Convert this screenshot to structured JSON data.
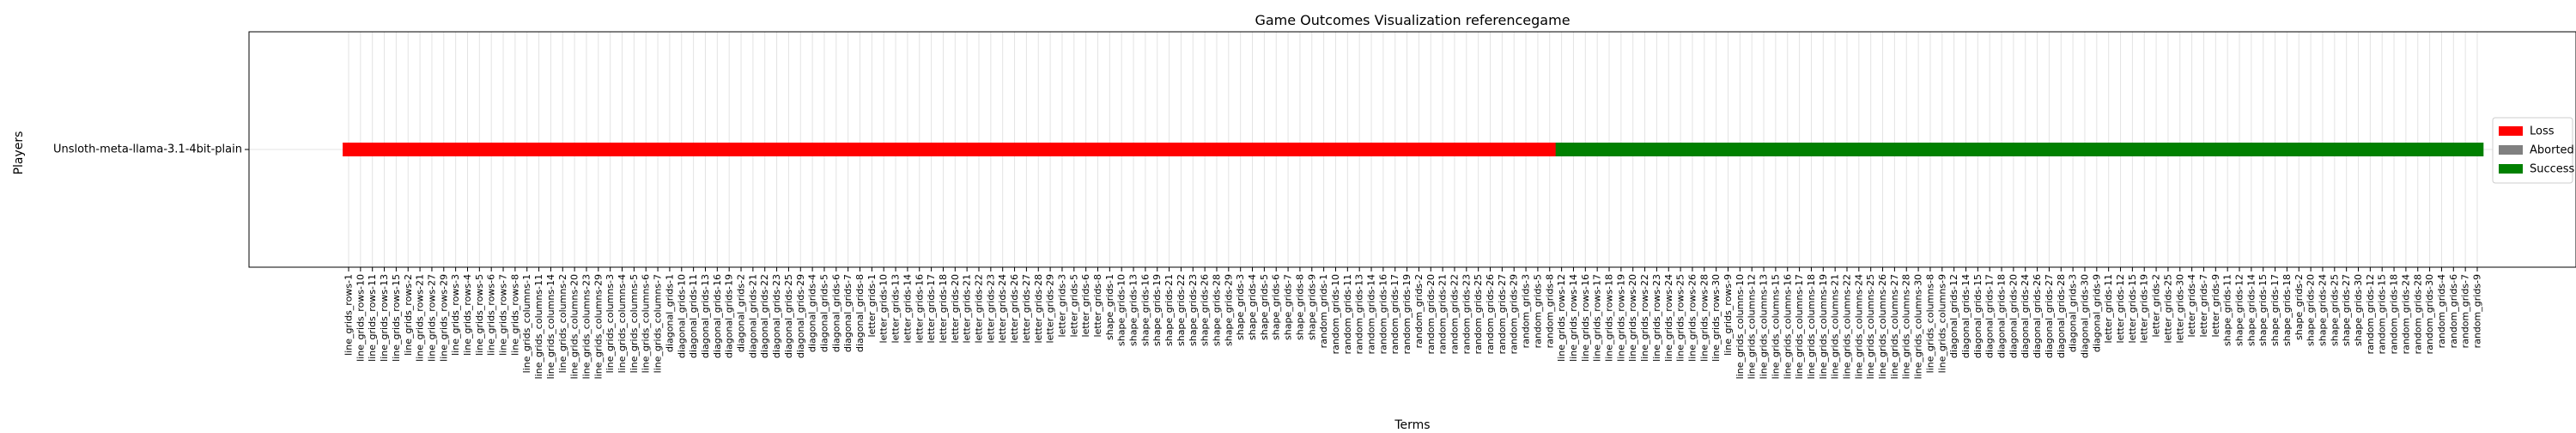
{
  "chart_data": {
    "type": "bar",
    "orientation": "horizontal-timeline",
    "title": "Game Outcomes Visualization referencegame",
    "xlabel": "Terms",
    "ylabel": "Players",
    "players": [
      "Unsloth-meta-llama-3.1-4bit-plain"
    ],
    "grid": true,
    "legend_position": "right",
    "legend": [
      {
        "label": "Loss",
        "color": "#ff0000"
      },
      {
        "label": "Aborted",
        "color": "#808080"
      },
      {
        "label": "Success",
        "color": "#008000"
      }
    ],
    "loss_terms": [
      "line_grids_rows-1",
      "line_grids_rows-10",
      "line_grids_rows-11",
      "line_grids_rows-13",
      "line_grids_rows-15",
      "line_grids_rows-2",
      "line_grids_rows-21",
      "line_grids_rows-27",
      "line_grids_rows-29",
      "line_grids_rows-3",
      "line_grids_rows-4",
      "line_grids_rows-5",
      "line_grids_rows-6",
      "line_grids_rows-7",
      "line_grids_rows-8",
      "line_grids_columns-1",
      "line_grids_columns-11",
      "line_grids_columns-14",
      "line_grids_columns-2",
      "line_grids_columns-20",
      "line_grids_columns-23",
      "line_grids_columns-29",
      "line_grids_columns-3",
      "line_grids_columns-4",
      "line_grids_columns-5",
      "line_grids_columns-6",
      "line_grids_columns-7",
      "diagonal_grids-1",
      "diagonal_grids-10",
      "diagonal_grids-11",
      "diagonal_grids-13",
      "diagonal_grids-16",
      "diagonal_grids-19",
      "diagonal_grids-2",
      "diagonal_grids-21",
      "diagonal_grids-22",
      "diagonal_grids-23",
      "diagonal_grids-25",
      "diagonal_grids-29",
      "diagonal_grids-4",
      "diagonal_grids-5",
      "diagonal_grids-6",
      "diagonal_grids-7",
      "diagonal_grids-8",
      "letter_grids-1",
      "letter_grids-10",
      "letter_grids-13",
      "letter_grids-14",
      "letter_grids-16",
      "letter_grids-17",
      "letter_grids-18",
      "letter_grids-20",
      "letter_grids-21",
      "letter_grids-22",
      "letter_grids-23",
      "letter_grids-24",
      "letter_grids-26",
      "letter_grids-27",
      "letter_grids-28",
      "letter_grids-29",
      "letter_grids-3",
      "letter_grids-5",
      "letter_grids-6",
      "letter_grids-8",
      "shape_grids-1",
      "shape_grids-10",
      "shape_grids-13",
      "shape_grids-16",
      "shape_grids-19",
      "shape_grids-21",
      "shape_grids-22",
      "shape_grids-23",
      "shape_grids-26",
      "shape_grids-28",
      "shape_grids-29",
      "shape_grids-3",
      "shape_grids-4",
      "shape_grids-5",
      "shape_grids-6",
      "shape_grids-7",
      "shape_grids-8",
      "shape_grids-9",
      "random_grids-1",
      "random_grids-10",
      "random_grids-11",
      "random_grids-13",
      "random_grids-14",
      "random_grids-16",
      "random_grids-17",
      "random_grids-19",
      "random_grids-2",
      "random_grids-20",
      "random_grids-21",
      "random_grids-22",
      "random_grids-23",
      "random_grids-25",
      "random_grids-26",
      "random_grids-27",
      "random_grids-29",
      "random_grids-3",
      "random_grids-5",
      "random_grids-8"
    ],
    "success_terms": [
      "line_grids_rows-12",
      "line_grids_rows-14",
      "line_grids_rows-16",
      "line_grids_rows-17",
      "line_grids_rows-18",
      "line_grids_rows-19",
      "line_grids_rows-20",
      "line_grids_rows-22",
      "line_grids_rows-23",
      "line_grids_rows-24",
      "line_grids_rows-25",
      "line_grids_rows-26",
      "line_grids_rows-28",
      "line_grids_rows-30",
      "line_grids_rows-9",
      "line_grids_columns-10",
      "line_grids_columns-12",
      "line_grids_columns-13",
      "line_grids_columns-15",
      "line_grids_columns-16",
      "line_grids_columns-17",
      "line_grids_columns-18",
      "line_grids_columns-19",
      "line_grids_columns-21",
      "line_grids_columns-22",
      "line_grids_columns-24",
      "line_grids_columns-25",
      "line_grids_columns-26",
      "line_grids_columns-27",
      "line_grids_columns-28",
      "line_grids_columns-30",
      "line_grids_columns-8",
      "line_grids_columns-9",
      "diagonal_grids-12",
      "diagonal_grids-14",
      "diagonal_grids-15",
      "diagonal_grids-17",
      "diagonal_grids-18",
      "diagonal_grids-20",
      "diagonal_grids-24",
      "diagonal_grids-26",
      "diagonal_grids-27",
      "diagonal_grids-28",
      "diagonal_grids-3",
      "diagonal_grids-30",
      "diagonal_grids-9",
      "letter_grids-11",
      "letter_grids-12",
      "letter_grids-15",
      "letter_grids-19",
      "letter_grids-2",
      "letter_grids-25",
      "letter_grids-30",
      "letter_grids-4",
      "letter_grids-7",
      "letter_grids-9",
      "shape_grids-11",
      "shape_grids-12",
      "shape_grids-14",
      "shape_grids-15",
      "shape_grids-17",
      "shape_grids-18",
      "shape_grids-2",
      "shape_grids-20",
      "shape_grids-24",
      "shape_grids-25",
      "shape_grids-27",
      "shape_grids-30",
      "random_grids-12",
      "random_grids-15",
      "random_grids-18",
      "random_grids-24",
      "random_grids-28",
      "random_grids-30",
      "random_grids-4",
      "random_grids-6",
      "random_grids-7",
      "random_grids-9"
    ]
  }
}
